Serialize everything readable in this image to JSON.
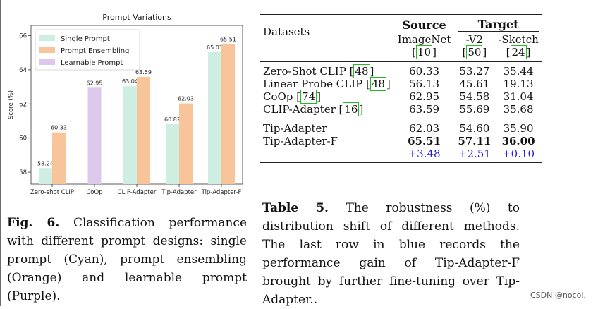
{
  "chart_data": {
    "type": "bar",
    "title": "Prompt Variations",
    "ylabel": "Score (%)",
    "xlabel": "",
    "ylim": [
      57.3,
      66.6
    ],
    "yticks": [
      58,
      60,
      62,
      64,
      66
    ],
    "categories": [
      "Zero-shot CLIP",
      "CoOp",
      "CLIP-Adapter",
      "Tip-Adapter",
      "Tip-Adapter-F"
    ],
    "legend_position": "top-left",
    "series": [
      {
        "name": "Single Prompt",
        "color": "#cdeee0",
        "bars": [
          {
            "category": "Zero-shot CLIP",
            "value": 58.24,
            "label": "58.24"
          },
          {
            "category": "CLIP-Adapter",
            "value": 63.04,
            "label": "63.04"
          },
          {
            "category": "Tip-Adapter",
            "value": 60.82,
            "label": "60.82"
          },
          {
            "category": "Tip-Adapter-F",
            "value": 65.03,
            "label": "65.03"
          }
        ]
      },
      {
        "name": "Prompt Ensembling",
        "color": "#f8c59b",
        "bars": [
          {
            "category": "Zero-shot CLIP",
            "value": 60.33,
            "label": "60.33"
          },
          {
            "category": "CLIP-Adapter",
            "value": 63.59,
            "label": "63.59"
          },
          {
            "category": "Tip-Adapter",
            "value": 62.03,
            "label": "62.03"
          },
          {
            "category": "Tip-Adapter-F",
            "value": 65.51,
            "label": "65.51"
          }
        ]
      },
      {
        "name": "Learnable Prompt",
        "color": "#dcc8ea",
        "bars": [
          {
            "category": "CoOp",
            "value": 62.95,
            "label": "62.95"
          }
        ]
      }
    ]
  },
  "figure_caption": {
    "label": "Fig. 6.",
    "text": "Classification performance with different prompt designs: single prompt (Cyan), prompt ensembling (Orange) and learnable prompt (Purple)."
  },
  "table": {
    "header_datasets": "Datasets",
    "header_source": "Source",
    "header_target": "Target",
    "sub_source": "ImageNet",
    "sub_target_1": "-V2",
    "sub_target_2": "-Sketch",
    "ref_source": "10",
    "ref_target_1": "50",
    "ref_target_2": "24",
    "rows": [
      {
        "method": "Zero-Shot CLIP",
        "ref": "48",
        "imagenet": "60.33",
        "v2": "53.27",
        "sketch": "35.44"
      },
      {
        "method": "Linear Probe CLIP",
        "ref": "48",
        "imagenet": "56.13",
        "v2": "45.61",
        "sketch": "19.13"
      },
      {
        "method": "CoOp",
        "ref": "74",
        "imagenet": "62.95",
        "v2": "54.58",
        "sketch": "31.04"
      },
      {
        "method": "CLIP-Adapter",
        "ref": "16",
        "imagenet": "63.59",
        "v2": "55.69",
        "sketch": "35.68"
      },
      {
        "method": "Tip-Adapter",
        "ref": "",
        "imagenet": "62.03",
        "v2": "54.60",
        "sketch": "35.90"
      },
      {
        "method": "Tip-Adapter-F",
        "ref": "",
        "imagenet": "65.51",
        "v2": "57.11",
        "sketch": "36.00"
      }
    ],
    "gain": {
      "imagenet": "+3.48",
      "v2": "+2.51",
      "sketch": "+0.10"
    }
  },
  "table_caption": {
    "label": "Table 5.",
    "text": "The robustness (%) to distribution shift of different methods. The last row in blue records the performance gain of Tip-Adapter-F brought by further fine-tuning over Tip-Adapter.."
  },
  "watermark": "CSDN @nocol."
}
